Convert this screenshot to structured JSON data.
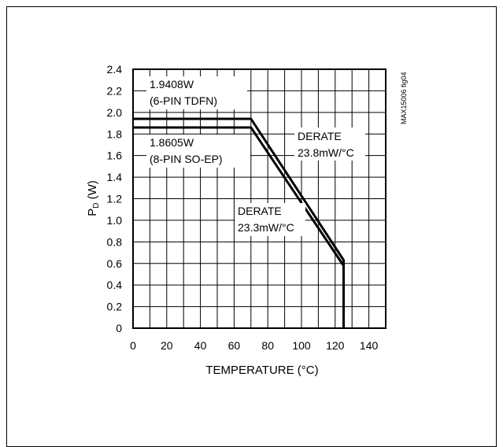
{
  "chart_data": {
    "type": "line",
    "xlabel": "TEMPERATURE (°C)",
    "ylabel_main": "P",
    "ylabel_sub": "D",
    "ylabel_tail": " (W)",
    "xlim": [
      0,
      150
    ],
    "ylim": [
      0,
      2.4
    ],
    "x_ticks": [
      0,
      20,
      40,
      60,
      80,
      100,
      120,
      140
    ],
    "y_ticks": [
      0,
      0.2,
      0.4,
      0.6,
      0.8,
      1.0,
      1.2,
      1.4,
      1.6,
      1.8,
      2.0,
      2.2,
      2.4
    ],
    "x_tick_labels": [
      "0",
      "20",
      "40",
      "60",
      "80",
      "100",
      "120",
      "140"
    ],
    "y_tick_labels": [
      "0",
      "0.2",
      "0.4",
      "0.6",
      "0.8",
      "1.0",
      "1.2",
      "1.4",
      "1.6",
      "1.8",
      "2.0",
      "2.2",
      "2.4"
    ],
    "grid": true,
    "series": [
      {
        "x": [
          0,
          70,
          125,
          125
        ],
        "y": [
          1.9408,
          1.9408,
          0.631,
          0
        ]
      },
      {
        "x": [
          0,
          70,
          125,
          125
        ],
        "y": [
          1.8605,
          1.8605,
          0.579,
          0
        ]
      }
    ],
    "annotations": {
      "tdfn_power": "1.9408W",
      "tdfn_pkg": "(6-PIN TDFN)",
      "soep_power": "1.8605W",
      "soep_pkg": "(8-PIN SO-EP)",
      "derate1_a": "DERATE",
      "derate1_b": "23.8mW/°C",
      "derate2_a": "DERATE",
      "derate2_b": "23.3mW/°C"
    },
    "figure_id": "MAX15006 fig04"
  }
}
